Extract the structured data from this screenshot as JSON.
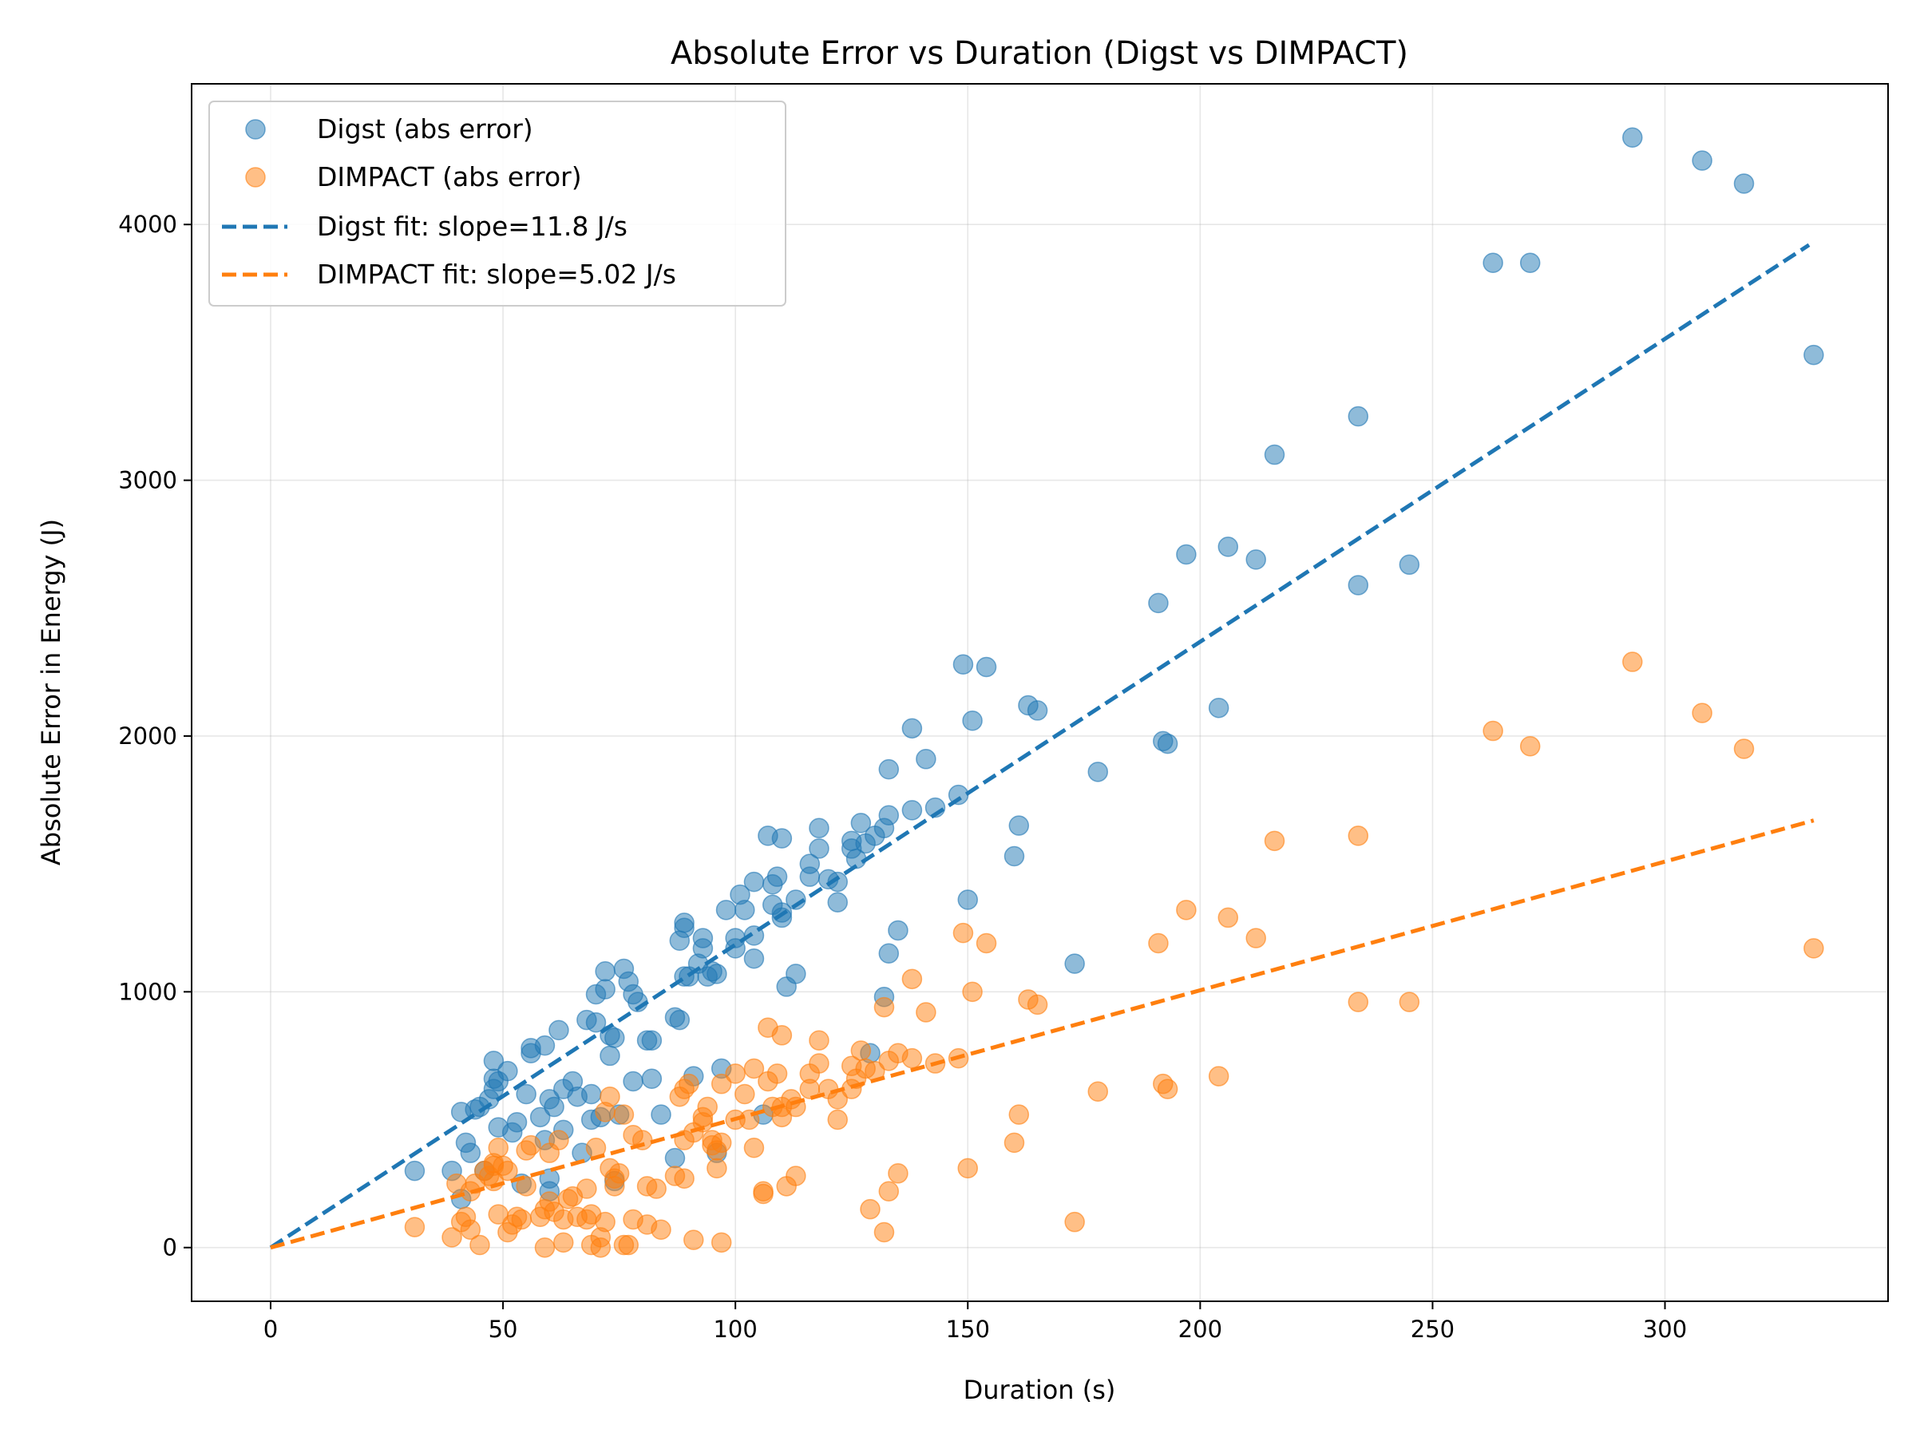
{
  "chart_data": {
    "type": "scatter",
    "title": "Absolute Error vs Duration (Digst vs DIMPACT)",
    "xlabel": "Duration (s)",
    "ylabel": "Absolute Error in Energy (J)",
    "xlim": [
      -17,
      348
    ],
    "ylim": [
      -210,
      4550
    ],
    "xticks": [
      0,
      50,
      100,
      150,
      200,
      250,
      300
    ],
    "yticks": [
      0,
      1000,
      2000,
      3000,
      4000
    ],
    "grid": true,
    "legend_position": "top-left",
    "colors": {
      "digst": "#1f77b4",
      "dimpact": "#ff7f0e"
    },
    "series": [
      {
        "name": "Digst (abs error)",
        "kind": "scatter",
        "color": "#1f77b4",
        "points": [
          [
            31,
            300
          ],
          [
            39,
            300
          ],
          [
            41,
            530
          ],
          [
            41,
            190
          ],
          [
            42,
            410
          ],
          [
            43,
            370
          ],
          [
            44,
            540
          ],
          [
            45,
            550
          ],
          [
            46,
            300
          ],
          [
            47,
            580
          ],
          [
            48,
            620
          ],
          [
            48,
            660
          ],
          [
            48,
            730
          ],
          [
            49,
            650
          ],
          [
            49,
            470
          ],
          [
            51,
            690
          ],
          [
            52,
            450
          ],
          [
            53,
            490
          ],
          [
            54,
            250
          ],
          [
            55,
            600
          ],
          [
            56,
            760
          ],
          [
            56,
            780
          ],
          [
            58,
            510
          ],
          [
            59,
            420
          ],
          [
            59,
            790
          ],
          [
            60,
            580
          ],
          [
            60,
            270
          ],
          [
            60,
            220
          ],
          [
            61,
            550
          ],
          [
            62,
            850
          ],
          [
            63,
            460
          ],
          [
            63,
            620
          ],
          [
            65,
            650
          ],
          [
            66,
            590
          ],
          [
            67,
            370
          ],
          [
            68,
            890
          ],
          [
            69,
            600
          ],
          [
            69,
            500
          ],
          [
            70,
            880
          ],
          [
            70,
            990
          ],
          [
            71,
            510
          ],
          [
            72,
            1080
          ],
          [
            72,
            1010
          ],
          [
            73,
            750
          ],
          [
            73,
            830
          ],
          [
            74,
            260
          ],
          [
            74,
            820
          ],
          [
            75,
            520
          ],
          [
            76,
            1090
          ],
          [
            77,
            1040
          ],
          [
            78,
            650
          ],
          [
            78,
            990
          ],
          [
            79,
            960
          ],
          [
            81,
            810
          ],
          [
            82,
            660
          ],
          [
            82,
            810
          ],
          [
            84,
            520
          ],
          [
            87,
            900
          ],
          [
            87,
            350
          ],
          [
            88,
            1200
          ],
          [
            88,
            890
          ],
          [
            89,
            1060
          ],
          [
            89,
            1250
          ],
          [
            89,
            1270
          ],
          [
            90,
            1060
          ],
          [
            91,
            670
          ],
          [
            92,
            1110
          ],
          [
            93,
            1170
          ],
          [
            93,
            1210
          ],
          [
            94,
            1060
          ],
          [
            95,
            1080
          ],
          [
            96,
            370
          ],
          [
            96,
            1070
          ],
          [
            97,
            700
          ],
          [
            98,
            1320
          ],
          [
            100,
            1170
          ],
          [
            100,
            1210
          ],
          [
            101,
            1380
          ],
          [
            102,
            1320
          ],
          [
            104,
            1130
          ],
          [
            104,
            1220
          ],
          [
            104,
            1430
          ],
          [
            106,
            520
          ],
          [
            107,
            1610
          ],
          [
            108,
            1420
          ],
          [
            108,
            1340
          ],
          [
            109,
            1450
          ],
          [
            110,
            1600
          ],
          [
            110,
            1290
          ],
          [
            110,
            1310
          ],
          [
            111,
            1020
          ],
          [
            113,
            1070
          ],
          [
            113,
            1360
          ],
          [
            116,
            1500
          ],
          [
            116,
            1450
          ],
          [
            118,
            1640
          ],
          [
            118,
            1560
          ],
          [
            120,
            1440
          ],
          [
            122,
            1430
          ],
          [
            122,
            1350
          ],
          [
            125,
            1590
          ],
          [
            125,
            1560
          ],
          [
            126,
            1520
          ],
          [
            127,
            1660
          ],
          [
            128,
            1580
          ],
          [
            129,
            760
          ],
          [
            130,
            1610
          ],
          [
            132,
            980
          ],
          [
            132,
            1640
          ],
          [
            133,
            1150
          ],
          [
            133,
            1870
          ],
          [
            133,
            1690
          ],
          [
            135,
            1240
          ],
          [
            138,
            1710
          ],
          [
            138,
            2030
          ],
          [
            141,
            1910
          ],
          [
            143,
            1720
          ],
          [
            148,
            1770
          ],
          [
            149,
            2280
          ],
          [
            150,
            1360
          ],
          [
            151,
            2060
          ],
          [
            154,
            2270
          ],
          [
            160,
            1530
          ],
          [
            161,
            1650
          ],
          [
            163,
            2120
          ],
          [
            165,
            2100
          ],
          [
            173,
            1110
          ],
          [
            178,
            1860
          ],
          [
            191,
            2520
          ],
          [
            192,
            1980
          ],
          [
            193,
            1970
          ],
          [
            197,
            2710
          ],
          [
            204,
            2110
          ],
          [
            206,
            2740
          ],
          [
            212,
            2690
          ],
          [
            216,
            3100
          ],
          [
            234,
            2590
          ],
          [
            234,
            3250
          ],
          [
            245,
            2670
          ],
          [
            263,
            3850
          ],
          [
            271,
            3850
          ],
          [
            293,
            4340
          ],
          [
            308,
            4250
          ],
          [
            317,
            4160
          ],
          [
            332,
            3490
          ]
        ]
      },
      {
        "name": "DIMPACT (abs error)",
        "kind": "scatter",
        "color": "#ff7f0e",
        "points": [
          [
            31,
            80
          ],
          [
            39,
            40
          ],
          [
            40,
            250
          ],
          [
            41,
            100
          ],
          [
            42,
            120
          ],
          [
            43,
            70
          ],
          [
            43,
            220
          ],
          [
            44,
            250
          ],
          [
            45,
            10
          ],
          [
            46,
            300
          ],
          [
            47,
            280
          ],
          [
            48,
            260
          ],
          [
            48,
            320
          ],
          [
            48,
            330
          ],
          [
            49,
            130
          ],
          [
            49,
            390
          ],
          [
            50,
            320
          ],
          [
            51,
            60
          ],
          [
            51,
            300
          ],
          [
            52,
            90
          ],
          [
            53,
            120
          ],
          [
            54,
            110
          ],
          [
            55,
            240
          ],
          [
            55,
            380
          ],
          [
            56,
            400
          ],
          [
            58,
            120
          ],
          [
            59,
            0
          ],
          [
            59,
            150
          ],
          [
            60,
            180
          ],
          [
            60,
            370
          ],
          [
            61,
            140
          ],
          [
            62,
            420
          ],
          [
            63,
            110
          ],
          [
            63,
            20
          ],
          [
            64,
            190
          ],
          [
            65,
            200
          ],
          [
            66,
            120
          ],
          [
            68,
            110
          ],
          [
            68,
            230
          ],
          [
            69,
            10
          ],
          [
            69,
            130
          ],
          [
            70,
            390
          ],
          [
            71,
            40
          ],
          [
            71,
            0
          ],
          [
            72,
            100
          ],
          [
            72,
            530
          ],
          [
            73,
            310
          ],
          [
            73,
            590
          ],
          [
            74,
            240
          ],
          [
            74,
            270
          ],
          [
            75,
            290
          ],
          [
            76,
            10
          ],
          [
            76,
            520
          ],
          [
            77,
            10
          ],
          [
            78,
            110
          ],
          [
            78,
            440
          ],
          [
            80,
            420
          ],
          [
            81,
            240
          ],
          [
            81,
            90
          ],
          [
            83,
            230
          ],
          [
            84,
            70
          ],
          [
            87,
            280
          ],
          [
            88,
            590
          ],
          [
            89,
            270
          ],
          [
            89,
            620
          ],
          [
            89,
            420
          ],
          [
            90,
            640
          ],
          [
            91,
            30
          ],
          [
            91,
            450
          ],
          [
            93,
            490
          ],
          [
            93,
            510
          ],
          [
            94,
            550
          ],
          [
            95,
            420
          ],
          [
            95,
            400
          ],
          [
            96,
            310
          ],
          [
            96,
            380
          ],
          [
            97,
            410
          ],
          [
            97,
            20
          ],
          [
            97,
            640
          ],
          [
            100,
            680
          ],
          [
            100,
            500
          ],
          [
            102,
            600
          ],
          [
            103,
            500
          ],
          [
            104,
            700
          ],
          [
            104,
            390
          ],
          [
            106,
            220
          ],
          [
            106,
            210
          ],
          [
            107,
            860
          ],
          [
            107,
            650
          ],
          [
            108,
            550
          ],
          [
            109,
            680
          ],
          [
            110,
            830
          ],
          [
            110,
            550
          ],
          [
            110,
            510
          ],
          [
            111,
            240
          ],
          [
            112,
            580
          ],
          [
            113,
            280
          ],
          [
            113,
            550
          ],
          [
            116,
            680
          ],
          [
            116,
            620
          ],
          [
            118,
            810
          ],
          [
            118,
            720
          ],
          [
            120,
            620
          ],
          [
            122,
            580
          ],
          [
            122,
            500
          ],
          [
            125,
            710
          ],
          [
            125,
            620
          ],
          [
            126,
            660
          ],
          [
            127,
            770
          ],
          [
            128,
            700
          ],
          [
            129,
            150
          ],
          [
            130,
            690
          ],
          [
            132,
            940
          ],
          [
            132,
            60
          ],
          [
            133,
            220
          ],
          [
            133,
            730
          ],
          [
            135,
            290
          ],
          [
            135,
            760
          ],
          [
            138,
            740
          ],
          [
            138,
            1050
          ],
          [
            141,
            920
          ],
          [
            143,
            720
          ],
          [
            148,
            740
          ],
          [
            149,
            1230
          ],
          [
            150,
            310
          ],
          [
            151,
            1000
          ],
          [
            154,
            1190
          ],
          [
            160,
            410
          ],
          [
            161,
            520
          ],
          [
            163,
            970
          ],
          [
            165,
            950
          ],
          [
            173,
            100
          ],
          [
            178,
            610
          ],
          [
            191,
            1190
          ],
          [
            192,
            640
          ],
          [
            193,
            620
          ],
          [
            197,
            1320
          ],
          [
            204,
            670
          ],
          [
            206,
            1290
          ],
          [
            212,
            1210
          ],
          [
            216,
            1590
          ],
          [
            234,
            960
          ],
          [
            234,
            1610
          ],
          [
            245,
            960
          ],
          [
            263,
            2020
          ],
          [
            271,
            1960
          ],
          [
            293,
            2290
          ],
          [
            308,
            2090
          ],
          [
            317,
            1950
          ],
          [
            332,
            1170
          ]
        ]
      },
      {
        "name": "Digst fit: slope=11.8 J/s",
        "kind": "line",
        "color": "#1f77b4",
        "x": [
          0,
          331
        ],
        "y": [
          0,
          3920
        ]
      },
      {
        "name": "DIMPACT fit: slope=5.02 J/s",
        "kind": "line",
        "color": "#ff7f0e",
        "x": [
          0,
          332
        ],
        "y": [
          0,
          1670
        ]
      }
    ]
  }
}
